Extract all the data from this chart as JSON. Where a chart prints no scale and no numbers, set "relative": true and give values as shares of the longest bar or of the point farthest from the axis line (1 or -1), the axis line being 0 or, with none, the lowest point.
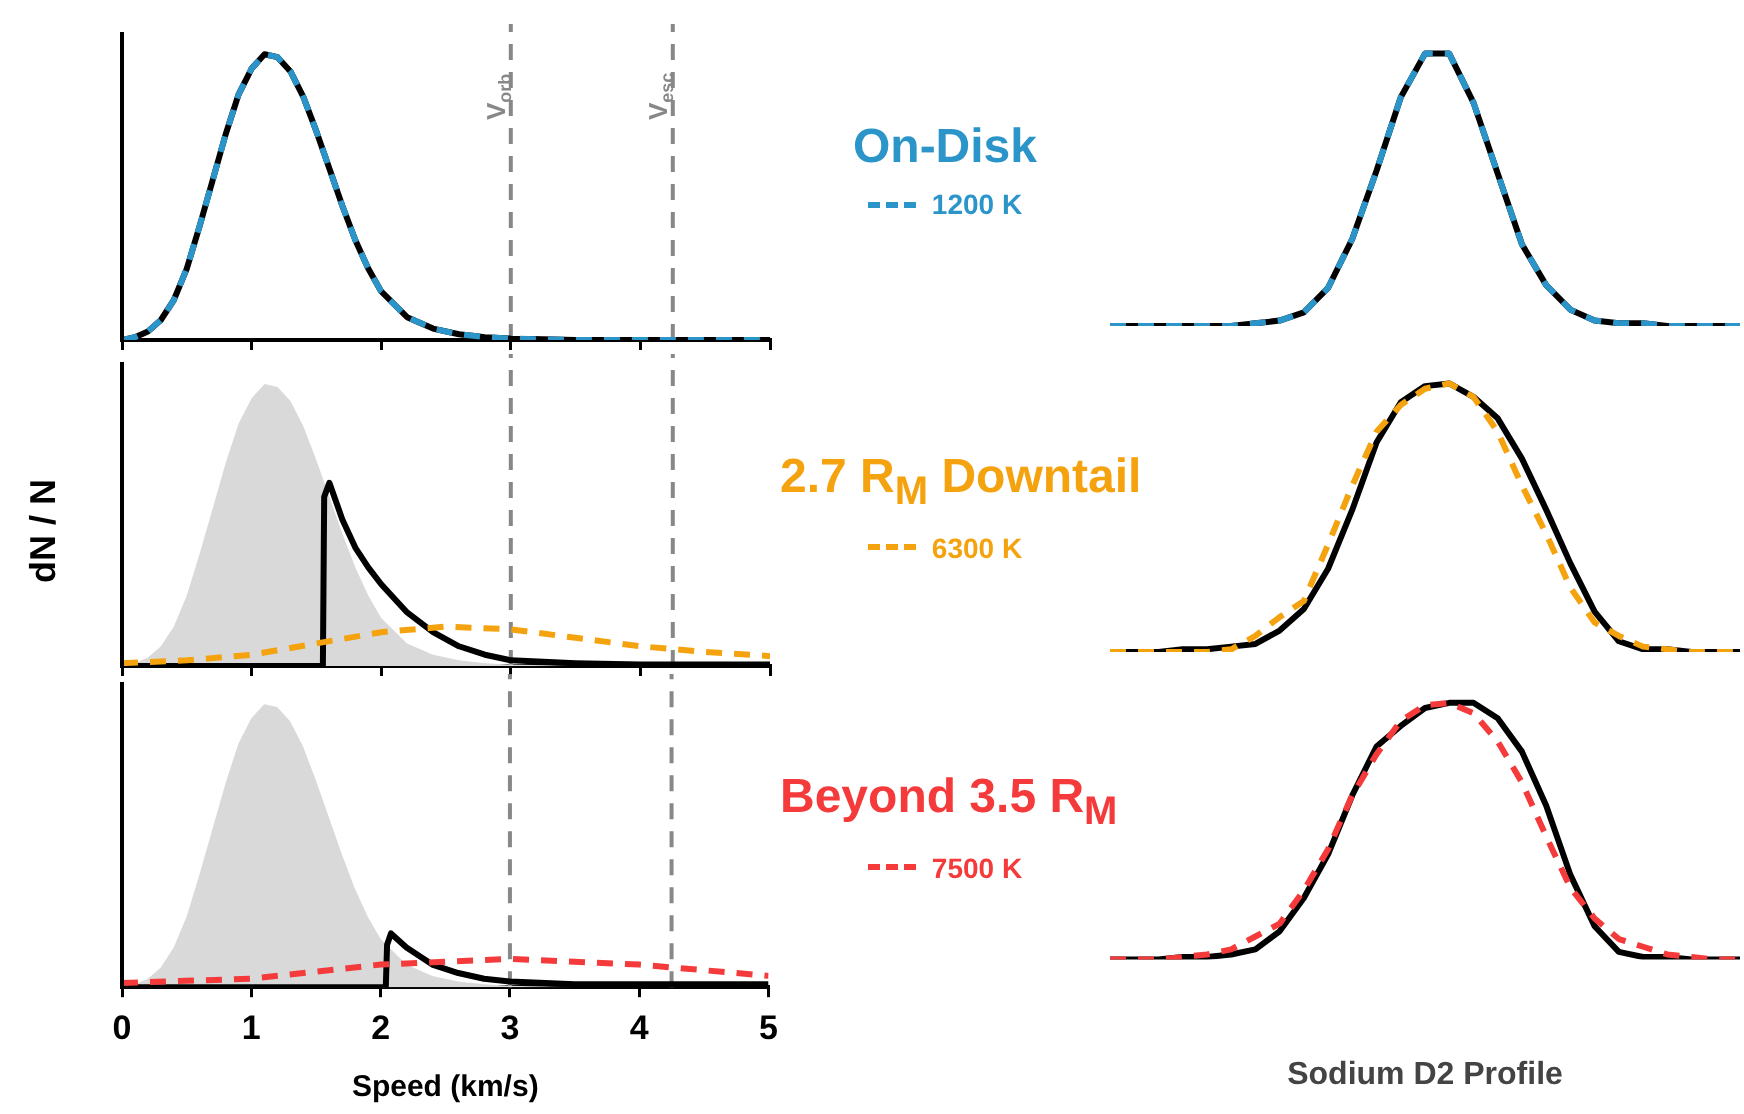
{
  "chart_data": [
    {
      "type": "line",
      "relative": true,
      "legend": "right",
      "legend_title": "On-Disk",
      "xlim": [
        0,
        5
      ],
      "xticks": [
        0,
        1,
        2,
        3,
        4,
        5
      ],
      "tick_labels": false,
      "ref_lines": [
        {
          "axis": "x",
          "value": 3,
          "label": "V$_{orb}$",
          "color": "#888888",
          "line_style": "dashed"
        },
        {
          "axis": "x",
          "value": 4.25,
          "label": "V$_{esc}$",
          "color": "#888888",
          "line_style": "dashed"
        }
      ],
      "series": [
        {
          "type": "line",
          "color": "#000000",
          "x": [
            0,
            0.1,
            0.2,
            0.3,
            0.4,
            0.5,
            0.6,
            0.7,
            0.8,
            0.9,
            1.0,
            1.1,
            1.2,
            1.3,
            1.4,
            1.5,
            1.6,
            1.7,
            1.8,
            1.9,
            2.0,
            2.2,
            2.4,
            2.6,
            2.8,
            3.0,
            3.5,
            4.0,
            4.5,
            5.0
          ],
          "values": [
            0,
            0.01,
            0.03,
            0.07,
            0.14,
            0.25,
            0.4,
            0.56,
            0.72,
            0.86,
            0.95,
            1.0,
            0.99,
            0.94,
            0.85,
            0.73,
            0.6,
            0.47,
            0.35,
            0.25,
            0.17,
            0.08,
            0.04,
            0.02,
            0.01,
            0.005,
            0,
            0,
            0,
            0
          ]
        },
        {
          "type": "line",
          "name": "1200 K",
          "color": "#2b95c9",
          "line_style": "dashed",
          "x": [
            0,
            0.1,
            0.2,
            0.3,
            0.4,
            0.5,
            0.6,
            0.7,
            0.8,
            0.9,
            1.0,
            1.1,
            1.2,
            1.3,
            1.4,
            1.5,
            1.6,
            1.7,
            1.8,
            1.9,
            2.0,
            2.2,
            2.4,
            2.6,
            2.8,
            3.0,
            3.5,
            4.0,
            4.5,
            5.0
          ],
          "values": [
            0,
            0.01,
            0.03,
            0.07,
            0.14,
            0.25,
            0.4,
            0.56,
            0.72,
            0.86,
            0.95,
            1.0,
            0.99,
            0.94,
            0.85,
            0.73,
            0.6,
            0.47,
            0.35,
            0.25,
            0.17,
            0.08,
            0.04,
            0.02,
            0.01,
            0.005,
            0,
            0,
            0,
            0
          ]
        }
      ]
    },
    {
      "type": "line",
      "relative": true,
      "legend": "right",
      "legend_title": "2.7 R$_{M}$ Downtail",
      "ylabel": "dN / N",
      "xlim": [
        0,
        5
      ],
      "xticks": [
        0,
        1,
        2,
        3,
        4,
        5
      ],
      "tick_labels": false,
      "ref_lines": [
        {
          "axis": "x",
          "value": 3,
          "color": "#888888",
          "line_style": "dashed"
        },
        {
          "axis": "x",
          "value": 4.25,
          "color": "#888888",
          "line_style": "dashed"
        }
      ],
      "series": [
        {
          "type": "area",
          "color": "#d9d9d9",
          "x": [
            0,
            0.1,
            0.2,
            0.3,
            0.4,
            0.5,
            0.6,
            0.7,
            0.8,
            0.9,
            1.0,
            1.1,
            1.2,
            1.3,
            1.4,
            1.5,
            1.6,
            1.7,
            1.8,
            1.9,
            2.0,
            2.2,
            2.4,
            2.6,
            2.8,
            3.0,
            3.5,
            4.0,
            4.5,
            5.0
          ],
          "values": [
            0,
            0.01,
            0.03,
            0.07,
            0.14,
            0.25,
            0.4,
            0.56,
            0.72,
            0.86,
            0.95,
            1.0,
            0.99,
            0.94,
            0.85,
            0.73,
            0.6,
            0.47,
            0.35,
            0.25,
            0.17,
            0.08,
            0.04,
            0.02,
            0.01,
            0.005,
            0,
            0,
            0,
            0
          ]
        },
        {
          "type": "line",
          "color": "#000000",
          "x": [
            0,
            1.55,
            1.56,
            1.6,
            1.7,
            1.8,
            1.9,
            2.0,
            2.2,
            2.4,
            2.6,
            2.8,
            3.0,
            3.5,
            4.0,
            5.0
          ],
          "values": [
            0,
            0,
            0.6,
            0.65,
            0.52,
            0.42,
            0.35,
            0.29,
            0.19,
            0.12,
            0.07,
            0.04,
            0.02,
            0.01,
            0.005,
            0.005
          ]
        },
        {
          "type": "line",
          "name": "6300 K",
          "color": "#f5a20f",
          "line_style": "dashed",
          "x": [
            0,
            0.5,
            1,
            1.5,
            2,
            2.5,
            3,
            3.5,
            4,
            4.5,
            5
          ],
          "values": [
            0.01,
            0.02,
            0.04,
            0.08,
            0.12,
            0.14,
            0.13,
            0.1,
            0.07,
            0.05,
            0.035
          ]
        }
      ]
    },
    {
      "type": "line",
      "relative": true,
      "legend": "right",
      "legend_title": "Beyond 3.5 R$_{M}$",
      "xlabel": "Speed (km/s)",
      "xlim": [
        0,
        5
      ],
      "xticks": [
        0,
        1,
        2,
        3,
        4,
        5
      ],
      "tick_labels": "x",
      "ref_lines": [
        {
          "axis": "x",
          "value": 3,
          "color": "#888888",
          "line_style": "dashed"
        },
        {
          "axis": "x",
          "value": 4.25,
          "color": "#888888",
          "line_style": "dashed"
        }
      ],
      "series": [
        {
          "type": "area",
          "color": "#d9d9d9",
          "x": [
            0,
            0.1,
            0.2,
            0.3,
            0.4,
            0.5,
            0.6,
            0.7,
            0.8,
            0.9,
            1.0,
            1.1,
            1.2,
            1.3,
            1.4,
            1.5,
            1.6,
            1.7,
            1.8,
            1.9,
            2.0,
            2.2,
            2.4,
            2.6,
            2.8,
            3.0,
            3.5,
            4.0,
            4.5,
            5.0
          ],
          "values": [
            0,
            0.01,
            0.03,
            0.07,
            0.14,
            0.25,
            0.4,
            0.56,
            0.72,
            0.86,
            0.95,
            1.0,
            0.99,
            0.94,
            0.85,
            0.73,
            0.6,
            0.47,
            0.35,
            0.25,
            0.17,
            0.08,
            0.04,
            0.02,
            0.01,
            0.005,
            0,
            0,
            0,
            0
          ]
        },
        {
          "type": "line",
          "color": "#000000",
          "x": [
            0,
            2.04,
            2.05,
            2.08,
            2.2,
            2.4,
            2.6,
            2.8,
            3.0,
            3.5,
            4.0,
            5.0
          ],
          "values": [
            0,
            0,
            0.15,
            0.19,
            0.14,
            0.08,
            0.05,
            0.03,
            0.02,
            0.01,
            0.01,
            0.01
          ]
        },
        {
          "type": "line",
          "name": "7500 K",
          "color": "#f43a3a",
          "line_style": "dashed",
          "x": [
            0,
            1,
            2,
            3,
            4,
            4.5,
            5
          ],
          "values": [
            0.015,
            0.03,
            0.08,
            0.1,
            0.08,
            0.06,
            0.04
          ]
        }
      ]
    },
    {
      "type": "line",
      "relative": true,
      "tick_labels": false,
      "categories": [
        null,
        null,
        null,
        null,
        null,
        null,
        null,
        null,
        null,
        null,
        null,
        null,
        null,
        null,
        null,
        null,
        null,
        null,
        null,
        null,
        null,
        null,
        null,
        null,
        null,
        null,
        null
      ],
      "series": [
        {
          "type": "line",
          "color": "#000000",
          "values": [
            0,
            0,
            0,
            0,
            0,
            0,
            0.01,
            0.02,
            0.05,
            0.14,
            0.32,
            0.57,
            0.84,
            1.0,
            1.0,
            0.82,
            0.56,
            0.3,
            0.15,
            0.06,
            0.02,
            0.01,
            0.01,
            0,
            0,
            0,
            0
          ]
        },
        {
          "type": "line",
          "color": "#2b95c9",
          "line_style": "dashed",
          "values": [
            0,
            0,
            0,
            0,
            0,
            0,
            0.01,
            0.02,
            0.05,
            0.14,
            0.32,
            0.57,
            0.84,
            1.0,
            1.0,
            0.82,
            0.56,
            0.3,
            0.15,
            0.06,
            0.02,
            0.01,
            0.01,
            0,
            0,
            0,
            0
          ]
        }
      ]
    },
    {
      "type": "line",
      "relative": true,
      "tick_labels": false,
      "categories": [
        null,
        null,
        null,
        null,
        null,
        null,
        null,
        null,
        null,
        null,
        null,
        null,
        null,
        null,
        null,
        null,
        null,
        null,
        null,
        null,
        null,
        null,
        null,
        null,
        null,
        null,
        null
      ],
      "series": [
        {
          "type": "line",
          "color": "#000000",
          "values": [
            0,
            0,
            0,
            0.01,
            0.01,
            0.02,
            0.03,
            0.08,
            0.16,
            0.31,
            0.53,
            0.78,
            0.93,
            0.99,
            1.0,
            0.95,
            0.87,
            0.72,
            0.53,
            0.33,
            0.15,
            0.04,
            0.01,
            0.01,
            0,
            0,
            0
          ]
        },
        {
          "type": "line",
          "color": "#f5a20f",
          "line_style": "dashed",
          "values": [
            0,
            0,
            0,
            0,
            0,
            0.01,
            0.06,
            0.13,
            0.19,
            0.4,
            0.62,
            0.82,
            0.92,
            0.98,
            1.0,
            0.95,
            0.82,
            0.62,
            0.44,
            0.24,
            0.11,
            0.06,
            0.02,
            0.01,
            0,
            0,
            0
          ]
        }
      ]
    },
    {
      "type": "line",
      "relative": true,
      "tick_labels": false,
      "xlabel": "Sodium D2 Profile",
      "categories": [
        null,
        null,
        null,
        null,
        null,
        null,
        null,
        null,
        null,
        null,
        null,
        null,
        null,
        null,
        null,
        null,
        null,
        null,
        null,
        null,
        null,
        null,
        null,
        null,
        null,
        null,
        null
      ],
      "series": [
        {
          "type": "line",
          "color": "#000000",
          "values": [
            0,
            0,
            0,
            0.01,
            0.01,
            0.02,
            0.04,
            0.11,
            0.24,
            0.41,
            0.64,
            0.83,
            0.91,
            0.98,
            1.0,
            1.0,
            0.94,
            0.81,
            0.6,
            0.33,
            0.13,
            0.03,
            0.01,
            0.01,
            0,
            0,
            0
          ]
        },
        {
          "type": "line",
          "color": "#f43a3a",
          "line_style": "dashed",
          "values": [
            0,
            0,
            0,
            0.01,
            0.02,
            0.04,
            0.09,
            0.14,
            0.27,
            0.43,
            0.64,
            0.8,
            0.93,
            0.99,
            1.0,
            0.96,
            0.85,
            0.69,
            0.48,
            0.28,
            0.16,
            0.08,
            0.05,
            0.02,
            0.01,
            0,
            0
          ]
        }
      ]
    }
  ]
}
